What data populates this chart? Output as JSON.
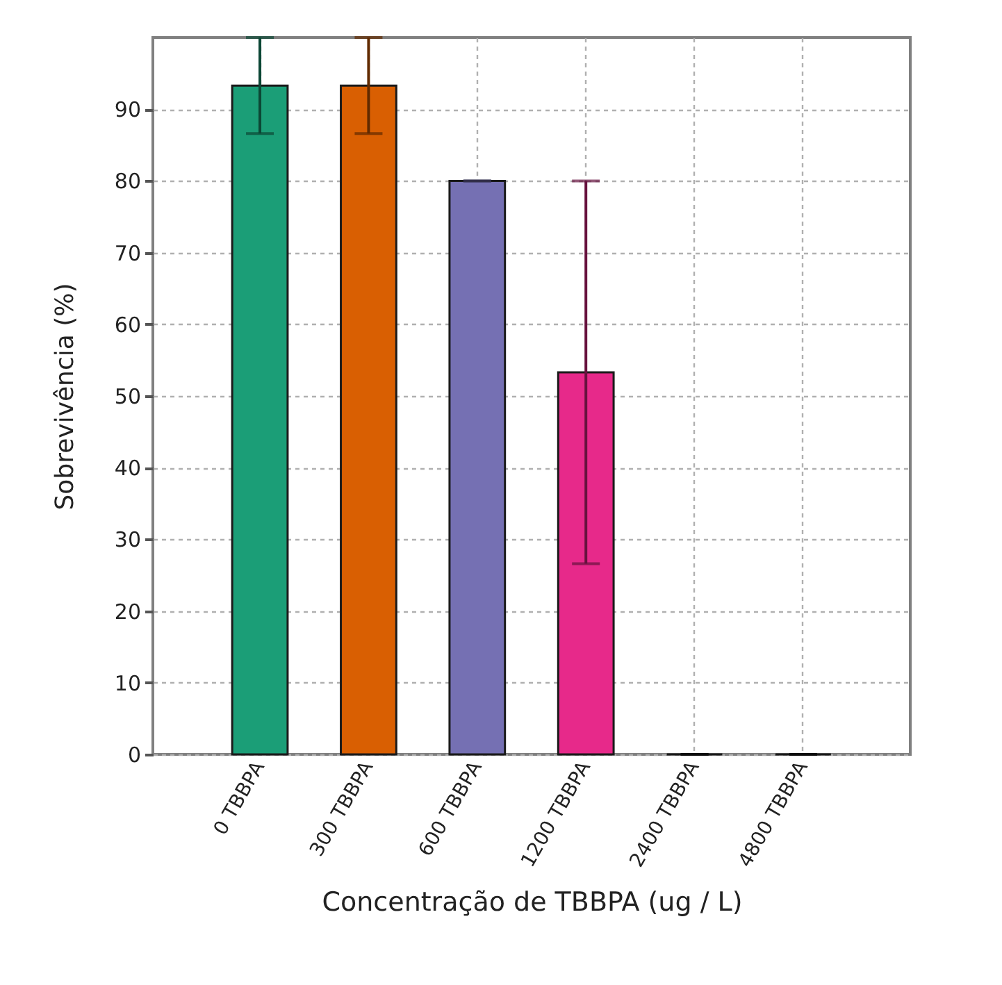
{
  "chart_data": {
    "type": "bar",
    "categories": [
      "0 TBBPA",
      "300 TBBPA",
      "600 TBBPA",
      "1200 TBBPA",
      "2400 TBBPA",
      "4800 TBBPA"
    ],
    "values": [
      93.3,
      93.3,
      80,
      53.3,
      0,
      0
    ],
    "errors": [
      6.7,
      6.7,
      0,
      26.7,
      0,
      0
    ],
    "colors": [
      "#1b9e77",
      "#d95f02",
      "#7570b3",
      "#e7298a",
      "#1a1a1a",
      "#1a1a1a"
    ],
    "xlabel": "Concentração de TBBPA (ug / L)",
    "ylabel": "Sobrevivência (%)",
    "ylim": [
      0,
      100
    ],
    "yticks": [
      0,
      10,
      20,
      30,
      40,
      50,
      60,
      70,
      80,
      90
    ],
    "grid": true
  }
}
